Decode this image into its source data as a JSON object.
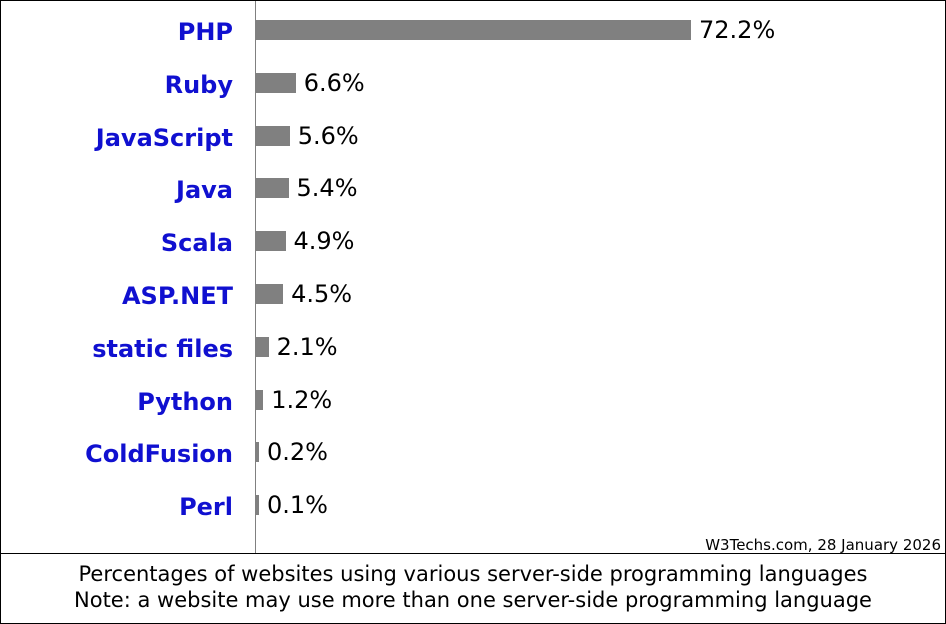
{
  "chart_data": {
    "type": "bar",
    "orientation": "horizontal",
    "categories": [
      "PHP",
      "Ruby",
      "JavaScript",
      "Java",
      "Scala",
      "ASP.NET",
      "static files",
      "Python",
      "ColdFusion",
      "Perl"
    ],
    "values": [
      72.2,
      6.6,
      5.6,
      5.4,
      4.9,
      4.5,
      2.1,
      1.2,
      0.2,
      0.1
    ],
    "value_labels": [
      "72.2%",
      "6.6%",
      "5.6%",
      "5.4%",
      "4.9%",
      "4.5%",
      "2.1%",
      "1.2%",
      "0.2%",
      "0.1%"
    ],
    "unit": "%",
    "bar_color": "#808080",
    "label_color": "#1010d0",
    "grid": false
  },
  "source": "W3Techs.com, 28 January 2026",
  "caption": {
    "line1": "Percentages of websites using various server-side programming languages",
    "line2": "Note: a website may use more than one server-side programming language"
  }
}
